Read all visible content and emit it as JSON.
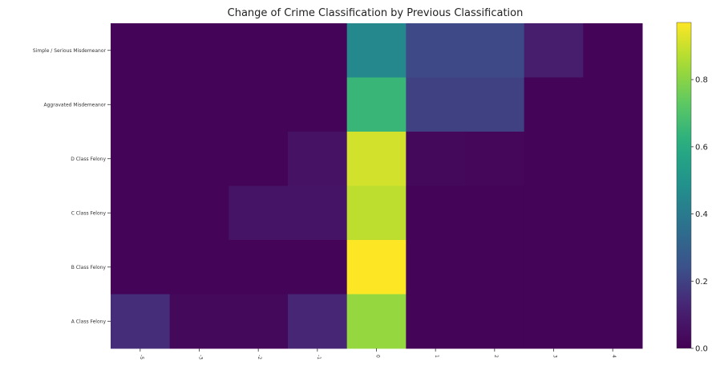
{
  "chart_data": {
    "type": "heatmap",
    "title": "Change of Crime Classification by Previous Classification",
    "xlabel": "",
    "ylabel": "",
    "x_ticks": [
      "-5",
      "-3",
      "-2",
      "-1",
      "0",
      "1",
      "2",
      "3",
      "4"
    ],
    "rows": [
      "Simple / Serious Misdemeanor",
      "Aggravated Misdemeanor",
      "D Class Felony",
      "C Class Felony",
      "B Class Felony",
      "A Class Felony"
    ],
    "values": [
      [
        0.01,
        0.01,
        0.01,
        0.01,
        0.45,
        0.22,
        0.22,
        0.1,
        0.01
      ],
      [
        0.01,
        0.01,
        0.01,
        0.01,
        0.65,
        0.2,
        0.2,
        0.01,
        0.01
      ],
      [
        0.01,
        0.01,
        0.01,
        0.06,
        0.91,
        0.03,
        0.02,
        0.01,
        0.01
      ],
      [
        0.01,
        0.01,
        0.07,
        0.07,
        0.88,
        0.01,
        0.01,
        0.01,
        0.01
      ],
      [
        0.01,
        0.01,
        0.01,
        0.01,
        0.97,
        0.01,
        0.01,
        0.01,
        0.01
      ],
      [
        0.15,
        0.03,
        0.03,
        0.13,
        0.82,
        0.01,
        0.01,
        0.01,
        0.01
      ]
    ],
    "colorscale": "viridis",
    "zlim": [
      0,
      0.97
    ],
    "colorbar_ticks": [
      "0.0",
      "0.2",
      "0.4",
      "0.6",
      "0.8"
    ],
    "colorbar_tick_values": [
      0.0,
      0.2,
      0.4,
      0.6,
      0.8
    ]
  }
}
